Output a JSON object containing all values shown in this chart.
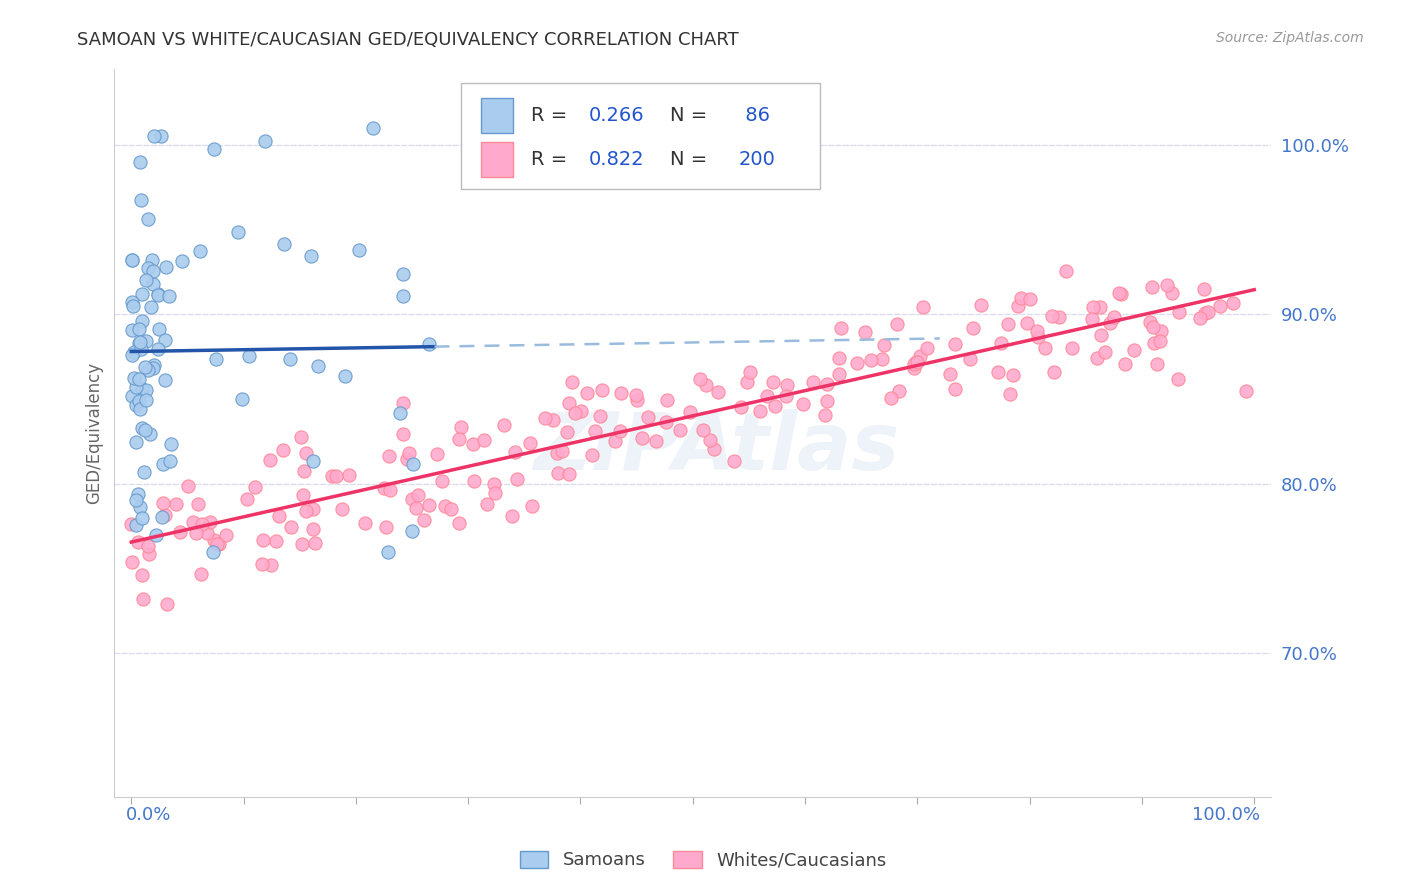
{
  "title": "SAMOAN VS WHITE/CAUCASIAN GED/EQUIVALENCY CORRELATION CHART",
  "source": "Source: ZipAtlas.com",
  "ylabel": "GED/Equivalency",
  "legend_label1": "Samoans",
  "legend_label2": "Whites/Caucasians",
  "R1": 0.266,
  "N1": 86,
  "R2": 0.822,
  "N2": 200,
  "blue_scatter_face": "#AACCEE",
  "blue_scatter_edge": "#6699CC",
  "pink_scatter_face": "#FFAACC",
  "pink_scatter_edge": "#FF8899",
  "blue_line_color": "#2255AA",
  "pink_line_color": "#EE3366",
  "dashed_line_color": "#99BBDD",
  "grid_color": "#DDDDEE",
  "title_color": "#333333",
  "source_color": "#999999",
  "axis_label_color": "#4477CC",
  "ylabel_color": "#666666",
  "watermark_color": "#CCDDEEBB",
  "background_color": "#FFFFFF",
  "legend_text_color": "#333333",
  "legend_value_color": "#2255CC",
  "xlim": [
    -0.015,
    1.015
  ],
  "ylim": [
    0.615,
    1.045
  ],
  "yticks": [
    0.7,
    0.8,
    0.9,
    1.0
  ],
  "ytick_labels": [
    "70.0%",
    "80.0%",
    "90.0%",
    "100.0%"
  ]
}
